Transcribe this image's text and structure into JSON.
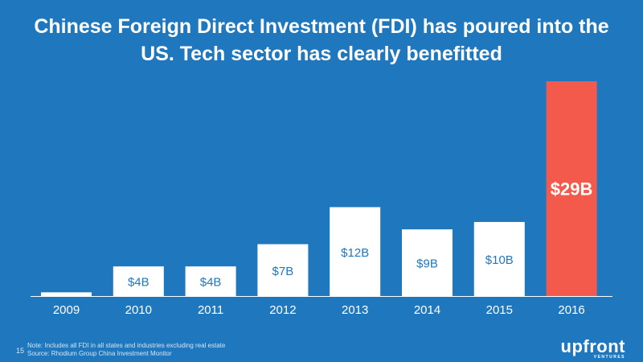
{
  "slide": {
    "title": "Chinese Foreign Direct Investment (FDI) has poured into the US. Tech sector has clearly benefitted",
    "page_number": "15",
    "note": "Note: Includes all FDI in all states and industries excluding real estate",
    "source": "Source: Rhodium Group China Investment Monitor",
    "logo_text": "upfront",
    "logo_subtext": "VENTURES"
  },
  "colors": {
    "background": "#1f77bd",
    "bar": "#ffffff",
    "highlight_bar": "#f45a4b",
    "label_on_white": "#1f77bd",
    "axis": "#ffffff"
  },
  "chart_data": {
    "type": "bar",
    "title": "Chinese Foreign Direct Investment (FDI) has poured into the US. Tech sector has clearly benefitted",
    "xlabel": "",
    "ylabel": "",
    "ylim": [
      0,
      29
    ],
    "categories": [
      "2009",
      "2010",
      "2011",
      "2012",
      "2013",
      "2014",
      "2015",
      "2016"
    ],
    "values": [
      0.5,
      4,
      4,
      7,
      12,
      9,
      10,
      29
    ],
    "labels": [
      "",
      "$4B",
      "$4B",
      "$7B",
      "$12B",
      "$9B",
      "$10B",
      "$29B"
    ],
    "highlight_index": 7,
    "grid": false
  }
}
